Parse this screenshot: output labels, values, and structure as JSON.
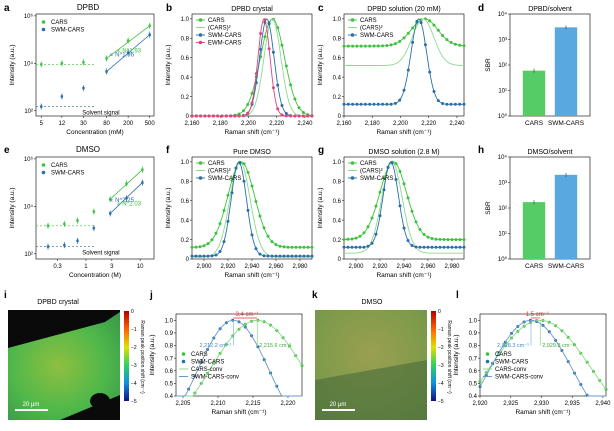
{
  "colors": {
    "cars": "#3cc23c",
    "swm": "#2a6fa8",
    "ewm": "#e0447a",
    "ref": "#8fd88f",
    "bar_green": "#55cc66",
    "bar_blue": "#5aa8e0",
    "red": "#e03030",
    "axis": "#222222"
  },
  "panel_labels": {
    "a": "a",
    "b": "b",
    "c": "c",
    "d": "d",
    "e": "e",
    "f": "f",
    "g": "g",
    "h": "h",
    "i": "i",
    "j": "j",
    "k": "k",
    "l": "l"
  },
  "texts": {
    "a_title": "DPBD",
    "e_title": "DMSO",
    "i_title": "DPBD crystal",
    "k_title": "DMSO",
    "scalebar_i": "20 μm",
    "scalebar_k": "20 μm",
    "colorbar_label": "Raman peak position shift (cm⁻¹)",
    "a_fit_cars": "∝ N^1.93",
    "a_fit_swm": "∝ N^1.96",
    "a_solvent": "Solvent signal",
    "e_fit_cars": "∝ N^2.03",
    "e_fit_swm": "∝ N^2.25",
    "e_solvent": "Solvent signal",
    "j_shift": "−3.4 cm⁻¹",
    "j_peak_swm": "2,212.2 cm⁻¹",
    "j_peak_cars": "2,215.6 cm⁻¹",
    "l_shift": "−1.5 cm⁻¹",
    "l_peak_swm": "2,928.3 cm⁻¹",
    "l_peak_cars": "2,929.8 cm⁻¹"
  },
  "chart_data": [
    {
      "id": "a",
      "type": "scatter",
      "title": "DPBD",
      "xlabel": "Concentration (mM)",
      "ylabel": "Intensity (a.u.)",
      "xscale": "log",
      "yscale": "log",
      "xlim": [
        4,
        600
      ],
      "ylim": [
        60,
        1200000
      ],
      "xticks": [
        5,
        12,
        30,
        80,
        200,
        500
      ],
      "xtick_labels": [
        "5",
        "12",
        "30",
        "80",
        "200",
        "500"
      ],
      "yticks": [
        100,
        10000,
        1000000
      ],
      "ytick_labels": [
        "10²",
        "10⁴",
        "10⁶"
      ],
      "legend": [
        "CARS",
        "SWM-CARS"
      ],
      "series": [
        {
          "name": "CARS",
          "x": [
            5,
            12,
            30,
            80,
            200,
            500
          ],
          "y": [
            9000,
            10000,
            11000,
            16000,
            90000,
            380000
          ]
        },
        {
          "name": "SWM-CARS",
          "x": [
            5,
            12,
            30,
            80,
            200,
            500
          ],
          "y": [
            150,
            400,
            900,
            4500,
            28000,
            160000
          ]
        }
      ]
    },
    {
      "id": "b",
      "type": "line",
      "title": "DPBD crystal",
      "xlabel": "Raman shift (cm⁻¹)",
      "ylabel": "Intensity (a.u.)",
      "xlim": [
        2160,
        2245
      ],
      "ylim": [
        0,
        1.05
      ],
      "xticks": [
        2160,
        2180,
        2200,
        2220,
        2240
      ],
      "xtick_labels": [
        "2,160",
        "2,180",
        "2,200",
        "2,220",
        "2,240"
      ],
      "yticks": [
        0,
        0.2,
        0.4,
        0.6,
        0.8,
        1.0
      ],
      "ytick_labels": [
        "0",
        "0.2",
        "0.4",
        "0.6",
        "0.8",
        "1.0"
      ],
      "legend": [
        "CARS",
        "(CARS)²",
        "SWM-CARS",
        "EWM-CARS"
      ],
      "series": [
        {
          "name": "CARS",
          "peak": 2217,
          "width": 20,
          "base": 0
        },
        {
          "name": "(CARS)²",
          "peak": 2217,
          "width": 14,
          "base": 0
        },
        {
          "name": "SWM-CARS",
          "peak": 2213,
          "width": 12,
          "base": 0
        },
        {
          "name": "EWM-CARS",
          "peak": 2211,
          "width": 10,
          "base": 0
        }
      ]
    },
    {
      "id": "c",
      "type": "line",
      "title": "DPBD solution (20 mM)",
      "xlabel": "Raman shift (cm⁻¹)",
      "ylabel": "Intensity (a.u.)",
      "xlim": [
        2160,
        2245
      ],
      "ylim": [
        0,
        1.05
      ],
      "xticks": [
        2160,
        2180,
        2200,
        2220,
        2240
      ],
      "xtick_labels": [
        "2,160",
        "2,180",
        "2,200",
        "2,220",
        "2,240"
      ],
      "yticks": [
        0,
        0.2,
        0.4,
        0.6,
        0.8,
        1.0
      ],
      "ytick_labels": [
        "0",
        "0.2",
        "0.4",
        "0.6",
        "0.8",
        "1.0"
      ],
      "legend": [
        "CARS",
        "(CARS)²",
        "SWM-CARS"
      ],
      "series": [
        {
          "name": "CARS",
          "peak": 2217,
          "width": 22,
          "base": 0.72
        },
        {
          "name": "(CARS)²",
          "peak": 2216,
          "width": 18,
          "base": 0.52
        },
        {
          "name": "SWM-CARS",
          "peak": 2213,
          "width": 13,
          "base": 0.12
        }
      ]
    },
    {
      "id": "d",
      "type": "bar",
      "title": "DPBD/solvent",
      "ylabel": "SBR",
      "yscale": "log",
      "ylim": [
        1,
        10000
      ],
      "yticks": [
        1,
        10,
        100,
        1000,
        10000
      ],
      "ytick_labels": [
        "10⁰",
        "10¹",
        "10²",
        "10³",
        "10⁴"
      ],
      "categories": [
        "CARS",
        "SWM-CARS"
      ],
      "values": [
        60,
        3000
      ]
    },
    {
      "id": "e",
      "type": "scatter",
      "title": "DMSO",
      "xlabel": "Concentration (M)",
      "ylabel": "Intensity (a.u.)",
      "xscale": "log",
      "yscale": "log",
      "xlim": [
        0.12,
        18
      ],
      "ylim": [
        60,
        1200000
      ],
      "xticks": [
        0.3,
        1,
        3,
        10
      ],
      "xtick_labels": [
        "0.3",
        "1",
        "3",
        "10"
      ],
      "yticks": [
        100,
        10000,
        1000000
      ],
      "ytick_labels": [
        "10²",
        "10⁴",
        "10⁶"
      ],
      "legend": [
        "CARS",
        "SWM-CARS"
      ],
      "series": [
        {
          "name": "CARS",
          "x": [
            0.2,
            0.4,
            0.7,
            1.4,
            2.8,
            5.6,
            11
          ],
          "y": [
            1500,
            1800,
            2500,
            6000,
            20000,
            90000,
            350000
          ]
        },
        {
          "name": "SWM-CARS",
          "x": [
            0.2,
            0.4,
            0.7,
            1.4,
            2.8,
            5.6,
            11
          ],
          "y": [
            200,
            230,
            350,
            1200,
            5000,
            22000,
            100000
          ]
        }
      ]
    },
    {
      "id": "f",
      "type": "line",
      "title": "Pure DMSO",
      "xlabel": "Raman shift (cm⁻¹)",
      "ylabel": "Intensity (a.u.)",
      "xlim": [
        2890,
        2990
      ],
      "ylim": [
        0,
        1.05
      ],
      "xticks": [
        2900,
        2920,
        2940,
        2960,
        2980
      ],
      "xtick_labels": [
        "2,900",
        "2,920",
        "2,940",
        "2,960",
        "2,980"
      ],
      "yticks": [
        0,
        0.2,
        0.4,
        0.6,
        0.8,
        1.0
      ],
      "ytick_labels": [
        "0",
        "0.2",
        "0.4",
        "0.6",
        "0.8",
        "1.0"
      ],
      "legend": [
        "CARS",
        "(CARS)²",
        "SWM-CARS"
      ],
      "series": [
        {
          "name": "CARS",
          "peak": 2931,
          "width": 26,
          "base": 0.12
        },
        {
          "name": "(CARS)²",
          "peak": 2930,
          "width": 20,
          "base": 0.02
        },
        {
          "name": "SWM-CARS",
          "peak": 2929,
          "width": 15,
          "base": 0.03
        }
      ]
    },
    {
      "id": "g",
      "type": "line",
      "title": "DMSO solution (2.8 M)",
      "xlabel": "Raman shift (cm⁻¹)",
      "ylabel": "Intensity (a.u.)",
      "xlim": [
        2890,
        2990
      ],
      "ylim": [
        0,
        1.05
      ],
      "xticks": [
        2900,
        2920,
        2940,
        2960,
        2980
      ],
      "xtick_labels": [
        "2,900",
        "2,920",
        "2,940",
        "2,960",
        "2,980"
      ],
      "yticks": [
        0,
        0.2,
        0.4,
        0.6,
        0.8,
        1.0
      ],
      "ytick_labels": [
        "0",
        "0.2",
        "0.4",
        "0.6",
        "0.8",
        "1.0"
      ],
      "legend": [
        "CARS",
        "(CARS)²",
        "SWM-CARS"
      ],
      "series": [
        {
          "name": "CARS",
          "peak": 2931,
          "width": 26,
          "base": 0.2
        },
        {
          "name": "(CARS)²",
          "peak": 2930,
          "width": 20,
          "base": 0.06
        },
        {
          "name": "SWM-CARS",
          "peak": 2929,
          "width": 15,
          "base": 0.12
        }
      ]
    },
    {
      "id": "h",
      "type": "bar",
      "title": "DMSO/solvent",
      "ylabel": "SBR",
      "yscale": "log",
      "ylim": [
        1,
        10000
      ],
      "yticks": [
        1,
        10,
        100,
        1000,
        10000
      ],
      "ytick_labels": [
        "10⁰",
        "10¹",
        "10²",
        "10³",
        "10⁴"
      ],
      "categories": [
        "CARS",
        "SWM-CARS"
      ],
      "values": [
        170,
        2000
      ]
    },
    {
      "id": "j",
      "type": "line",
      "xlabel": "Raman shift (cm⁻¹)",
      "ylabel": "Intensity (a.u.)",
      "xlim": [
        2204,
        2222
      ],
      "ylim": [
        0.4,
        1.05
      ],
      "xticks": [
        2205,
        2210,
        2215,
        2220
      ],
      "xtick_labels": [
        "2,205",
        "2,210",
        "2,215",
        "2,220"
      ],
      "yticks": [
        0.4,
        0.5,
        0.6,
        0.7,
        0.8,
        0.9,
        1.0
      ],
      "ytick_labels": [
        "0.4",
        "0.5",
        "0.6",
        "0.7",
        "0.8",
        "0.9",
        "1.0"
      ],
      "legend": [
        "CARS",
        "SWM-CARS",
        "CARS-conv",
        "SWM-CARS-conv"
      ],
      "series": [
        {
          "name": "CARS",
          "peak": 2215.6,
          "width": 16,
          "base": 0
        },
        {
          "name": "SWM-CARS",
          "peak": 2212.2,
          "width": 12,
          "base": 0
        },
        {
          "name": "CARS-conv",
          "peak": 2215.6,
          "width": 16,
          "base": 0
        },
        {
          "name": "SWM-CARS-conv",
          "peak": 2212.2,
          "width": 12,
          "base": 0
        }
      ]
    },
    {
      "id": "l",
      "type": "line",
      "xlabel": "Raman shift (cm⁻¹)",
      "ylabel": "Intensity (a.u.)",
      "xlim": [
        2920,
        2940.5
      ],
      "ylim": [
        0.4,
        1.05
      ],
      "xticks": [
        2920,
        2925,
        2930,
        2935,
        2940
      ],
      "xtick_labels": [
        "2,920",
        "2,925",
        "2,930",
        "2,935",
        "2,940"
      ],
      "yticks": [
        0.4,
        0.5,
        0.6,
        0.7,
        0.8,
        0.9,
        1.0
      ],
      "ytick_labels": [
        "0.4",
        "0.5",
        "0.6",
        "0.7",
        "0.8",
        "0.9",
        "1.0"
      ],
      "legend": [
        "CARS",
        "SWM-CARS",
        "CARS-conv",
        "SWM-CARS-conv"
      ],
      "series": [
        {
          "name": "CARS",
          "peak": 2929.8,
          "width": 20,
          "base": 0
        },
        {
          "name": "SWM-CARS",
          "peak": 2928.3,
          "width": 16,
          "base": 0
        },
        {
          "name": "CARS-conv",
          "peak": 2929.8,
          "width": 20,
          "base": 0
        },
        {
          "name": "SWM-CARS-conv",
          "peak": 2928.3,
          "width": 16,
          "base": 0
        }
      ]
    },
    {
      "id": "i",
      "type": "heatmap",
      "title": "DPBD crystal",
      "colorbar_ticks": [
        -5,
        -4,
        -3,
        -2,
        -1,
        0
      ],
      "colorbar_tick_labels": [
        "−5",
        "−4",
        "−3",
        "−2",
        "−1",
        "0"
      ]
    },
    {
      "id": "k",
      "type": "heatmap",
      "title": "DMSO",
      "colorbar_ticks": [
        -5,
        -4,
        -3,
        -2,
        -1,
        0
      ],
      "colorbar_tick_labels": [
        "−5",
        "−4",
        "−3",
        "−2",
        "−1",
        "0"
      ]
    }
  ]
}
